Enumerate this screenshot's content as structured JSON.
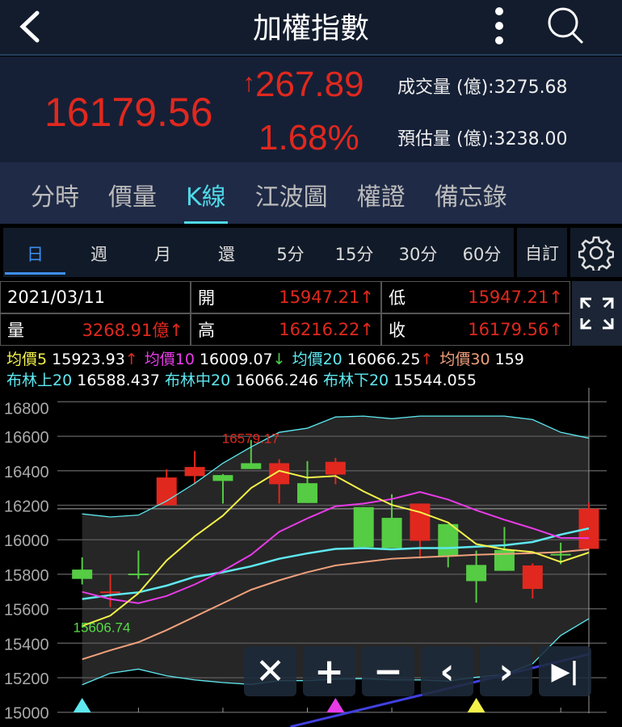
{
  "header": {
    "title": "加權指數",
    "back_icon": "chevron-left-icon",
    "menu_icon": "kebab-icon",
    "search_icon": "search-icon"
  },
  "quote": {
    "price": "16179.56",
    "change": "267.89",
    "change_arrow": "↑",
    "percent": "1.68%",
    "volume_label": "成交量 (億):",
    "volume": "3275.68",
    "est_label": "預估量 (億):",
    "est": "3238.00",
    "color_up": "#e0281e"
  },
  "tabs": [
    {
      "label": "分時"
    },
    {
      "label": "價量"
    },
    {
      "label": "K線",
      "active": true
    },
    {
      "label": "江波圖"
    },
    {
      "label": "權證"
    },
    {
      "label": "備忘錄"
    }
  ],
  "periods": [
    {
      "label": "日",
      "active": true
    },
    {
      "label": "週"
    },
    {
      "label": "月"
    },
    {
      "label": "還"
    },
    {
      "label": "5分"
    },
    {
      "label": "15分"
    },
    {
      "label": "30分"
    },
    {
      "label": "60分"
    }
  ],
  "custom_label": "自訂",
  "info": {
    "date": "2021/03/11",
    "open_label": "開",
    "open": "15947.21↑",
    "low_label": "低",
    "low": "15947.21↑",
    "vol_label": "量",
    "vol": "3268.91億↑",
    "high_label": "高",
    "high": "16216.22↑",
    "close_label": "收",
    "close": "16179.56↑"
  },
  "ma": [
    {
      "label": "均價5",
      "value": "15923.93",
      "arrow": "↑",
      "color": "#f4f24a",
      "arrow_color": "#e0281e"
    },
    {
      "label": "均價10",
      "value": "16009.07",
      "arrow": "↓",
      "color": "#e83be8",
      "arrow_color": "#4cd24c"
    },
    {
      "label": "均價20",
      "value": "16066.25",
      "arrow": "↑",
      "color": "#5ee8f0",
      "arrow_color": "#e0281e"
    },
    {
      "label": "均價30",
      "value": "159",
      "arrow": "",
      "color": "#f0a07c",
      "arrow_color": "#e0281e"
    }
  ],
  "boll": [
    {
      "label": "布林上20",
      "value": "16588.437"
    },
    {
      "label": "布林中20",
      "value": "16066.246"
    },
    {
      "label": "布林下20",
      "value": "15544.055"
    }
  ],
  "chart_data": {
    "type": "candlestick",
    "ylim": [
      15000,
      16800
    ],
    "yticks": [
      15000,
      15200,
      15400,
      15600,
      15800,
      16000,
      16200,
      16400,
      16600,
      16800
    ],
    "candles": [
      [
        15827,
        15898,
        15741,
        15773
      ],
      [
        15695,
        15799,
        15609,
        15700
      ],
      [
        15804,
        15937,
        15773,
        15800
      ],
      [
        16200,
        16408,
        16199,
        16361
      ],
      [
        16369,
        16514,
        16322,
        16422
      ],
      [
        16375,
        16381,
        16210,
        16341
      ],
      [
        16444,
        16579.17,
        16410,
        16410
      ],
      [
        16322,
        16467,
        16210,
        16444
      ],
      [
        16328,
        16456,
        16213,
        16213
      ],
      [
        16378,
        16475,
        16322,
        16452
      ],
      [
        16189,
        16189,
        15957,
        15957
      ],
      [
        16127,
        16264,
        15952,
        15952
      ],
      [
        15994,
        16210,
        15890,
        16210
      ],
      [
        16091,
        16091,
        15840,
        15905
      ],
      [
        15854,
        15937,
        15635,
        15760
      ],
      [
        15941,
        16074,
        15820,
        15820
      ],
      [
        15715,
        15863,
        15659,
        15851
      ],
      [
        15918,
        15983,
        15858,
        15916
      ],
      [
        15947.21,
        16216.22,
        15947.21,
        16179.56
      ]
    ],
    "ma5": [
      15500,
      15560,
      15690,
      15880,
      16020,
      16140,
      16300,
      16400,
      16360,
      16370,
      16280,
      16202,
      16160,
      16100,
      15975,
      15944,
      15929,
      15871,
      15926
    ],
    "ma10": [
      15698,
      15656,
      15632,
      15674,
      15741,
      15820,
      15913,
      16046,
      16124,
      16194,
      16210,
      16236,
      16277,
      16233,
      16171,
      16116,
      16066,
      16011,
      16009
    ],
    "ma20": [
      15656,
      15679,
      15695,
      15734,
      15785,
      15812,
      15846,
      15890,
      15921,
      15947,
      15952,
      15944,
      15952,
      15952,
      15960,
      15968,
      15987,
      16030,
      16066
    ],
    "ma30": [
      15307,
      15359,
      15406,
      15476,
      15554,
      15632,
      15710,
      15765,
      15812,
      15851,
      15871,
      15890,
      15898,
      15905,
      15913,
      15918,
      15922,
      15929,
      15944
    ],
    "boll_upper": [
      16150,
      16132,
      16143,
      16225,
      16327,
      16444,
      16538,
      16623,
      16647,
      16712,
      16717,
      16702,
      16717,
      16717,
      16717,
      16717,
      16697,
      16623,
      16589
    ],
    "boll_lower": [
      15159,
      15226,
      15250,
      15211,
      15187,
      15172,
      15161,
      15183,
      15183,
      15192,
      15195,
      15187,
      15187,
      15180,
      15203,
      15219,
      15281,
      15445,
      15542
    ],
    "trendline": {
      "from": [
        8.4,
        15000
      ],
      "to": [
        19,
        15336
      ]
    },
    "max_label": "16579.17",
    "max_index": 7,
    "min_label": "15606.74",
    "min_index": 2,
    "markers": [
      {
        "index": 1,
        "color": "#5ee8f0"
      },
      {
        "index": 10,
        "color": "#e83be8"
      },
      {
        "index": 15,
        "color": "#f4f24a"
      }
    ],
    "last_close": 16179.56,
    "colors": {
      "up": "#e0281e",
      "down": "#55cc44",
      "grid": "#555",
      "band_fill": "#262626",
      "trend": "#4040e0"
    }
  },
  "controls": [
    {
      "icon": "close-icon",
      "glyph": "✕"
    },
    {
      "icon": "zoom-in-icon",
      "glyph": "+"
    },
    {
      "icon": "zoom-out-icon",
      "glyph": "−"
    },
    {
      "icon": "chevron-left-icon",
      "glyph": "‹"
    },
    {
      "icon": "chevron-right-icon",
      "glyph": "›"
    },
    {
      "icon": "skip-to-end-icon",
      "glyph": "▶|"
    }
  ]
}
